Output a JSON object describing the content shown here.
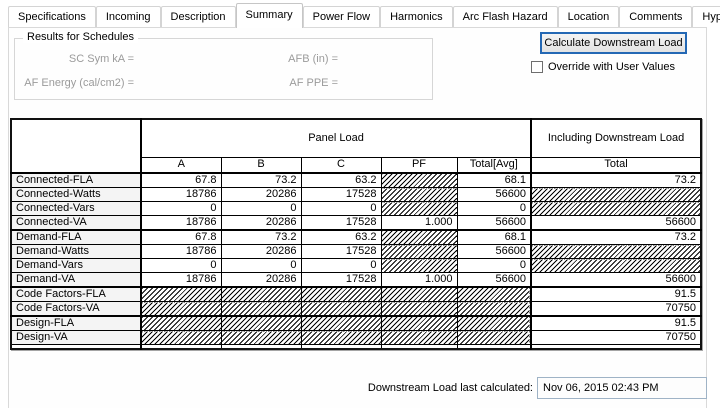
{
  "tabs": {
    "items": [
      "Specifications",
      "Incoming",
      "Description",
      "Summary",
      "Power Flow",
      "Harmonics",
      "Arc Flash Hazard",
      "Location",
      "Comments",
      "Hyperlinks"
    ],
    "active": "Summary"
  },
  "results_group": {
    "title": "Results for Schedules",
    "fields": [
      "SC Sym kA =",
      "AFB (in) =",
      "AF Energy (cal/cm2) =",
      "AF PPE ="
    ]
  },
  "controls": {
    "calculate_button": "Calculate Downstream Load",
    "override_label": "Override with User Values",
    "override_checked": false
  },
  "load_table": {
    "panel_load_header": "Panel Load",
    "downstream_header": "Including Downstream Load",
    "columns": [
      "A",
      "B",
      "C",
      "PF",
      "Total[Avg]",
      "Total"
    ],
    "rows": [
      {
        "label": "Connected-FLA",
        "values": [
          "67.8",
          "73.2",
          "63.2",
          null,
          "68.1",
          "73.2"
        ]
      },
      {
        "label": "Connected-Watts",
        "values": [
          "18786",
          "20286",
          "17528",
          null,
          "56600",
          null
        ]
      },
      {
        "label": "Connected-Vars",
        "values": [
          "0",
          "0",
          "0",
          null,
          "0",
          null
        ]
      },
      {
        "label": "Connected-VA",
        "values": [
          "18786",
          "20286",
          "17528",
          "1.000",
          "56600",
          "56600"
        ],
        "group_end": true
      },
      {
        "label": "Demand-FLA",
        "values": [
          "67.8",
          "73.2",
          "63.2",
          null,
          "68.1",
          "73.2"
        ]
      },
      {
        "label": "Demand-Watts",
        "values": [
          "18786",
          "20286",
          "17528",
          null,
          "56600",
          null
        ]
      },
      {
        "label": "Demand-Vars",
        "values": [
          "0",
          "0",
          "0",
          null,
          "0",
          null
        ]
      },
      {
        "label": "Demand-VA",
        "values": [
          "18786",
          "20286",
          "17528",
          "1.000",
          "56600",
          "56600"
        ],
        "group_end": true
      },
      {
        "label": "Code Factors-FLA",
        "values": [
          null,
          null,
          null,
          null,
          null,
          "91.5"
        ]
      },
      {
        "label": "Code Factors-VA",
        "values": [
          null,
          null,
          null,
          null,
          null,
          "70750"
        ],
        "group_end": true
      },
      {
        "label": "Design-FLA",
        "values": [
          null,
          null,
          null,
          null,
          null,
          "91.5"
        ]
      },
      {
        "label": "Design-VA",
        "values": [
          null,
          null,
          null,
          null,
          null,
          "70750"
        ]
      }
    ]
  },
  "footer": {
    "label": "Downstream Load last calculated:",
    "value": "Nov 06, 2015 02:43 PM"
  },
  "colors": {
    "frame_blue": "#7495c3",
    "button_focus_blue": "#2468b4",
    "disabled_text": "#9b9b9b"
  }
}
